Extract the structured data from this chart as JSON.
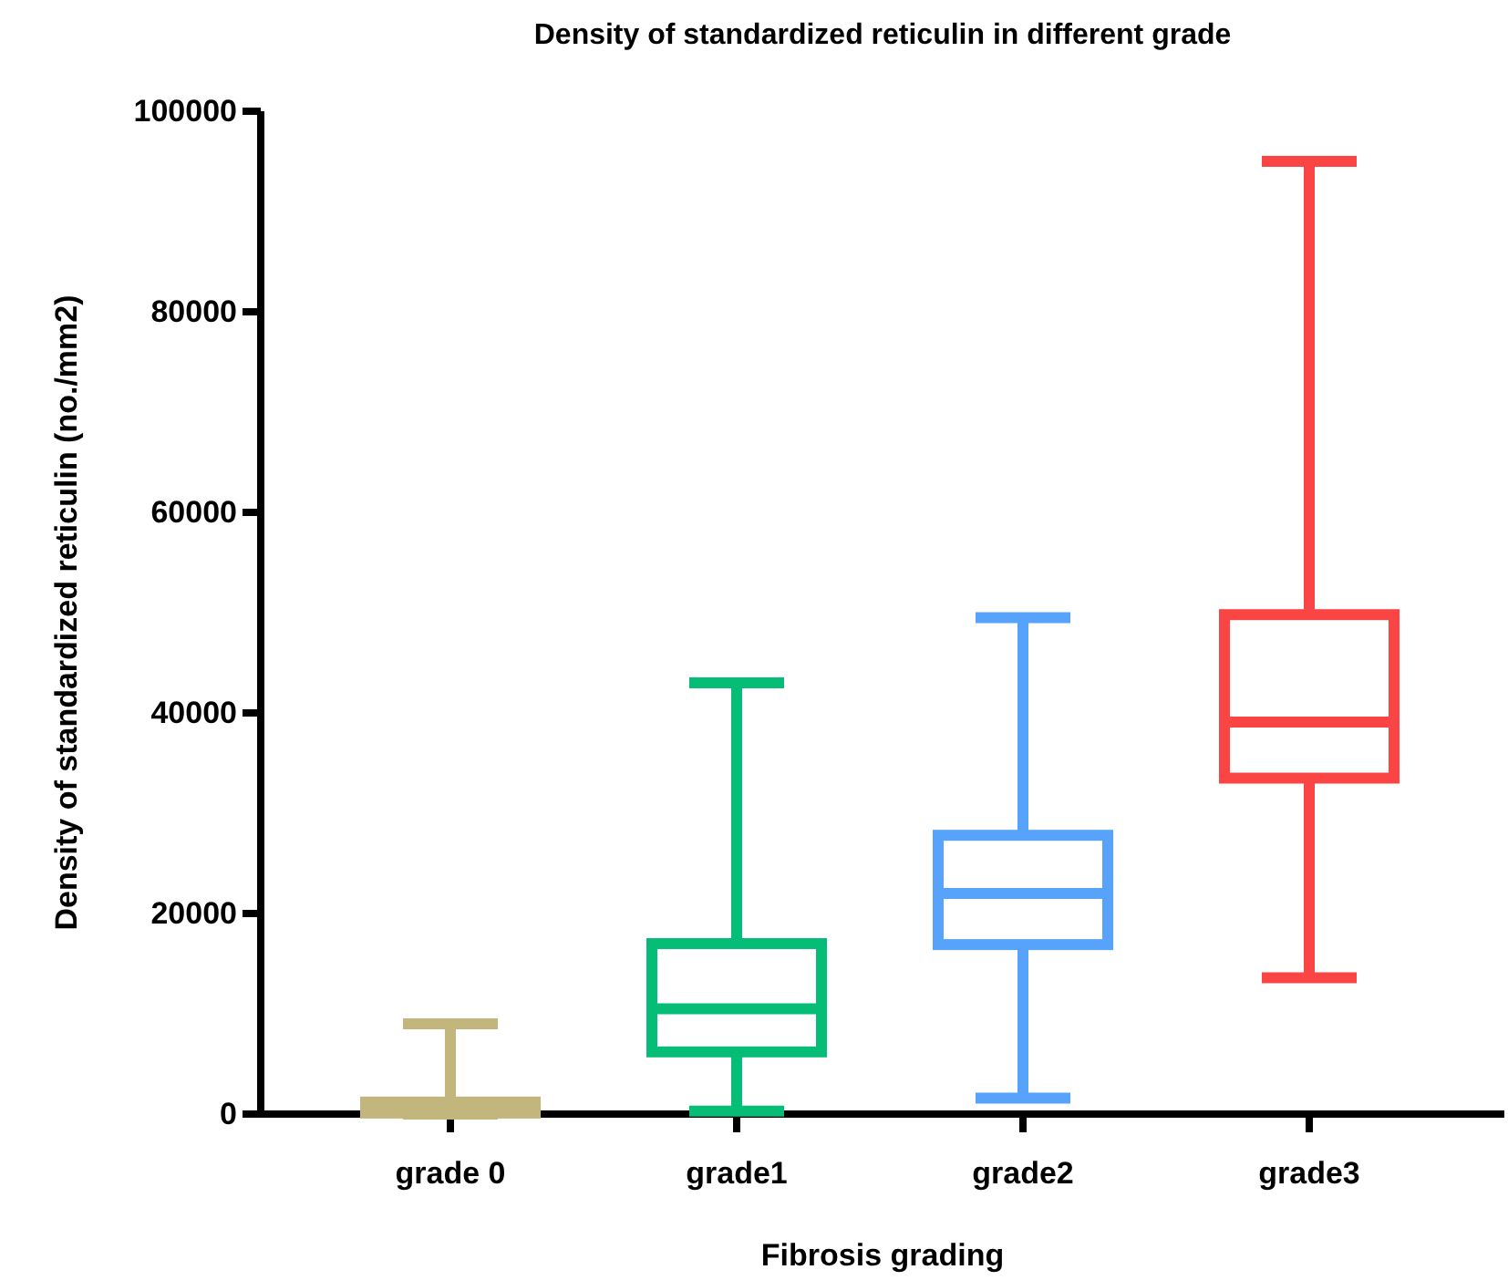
{
  "chart_data": {
    "type": "box",
    "title": "Density of standardized reticulin in different grade",
    "xlabel": "Fibrosis grading",
    "ylabel": "Density of standardized reticulin (no./mm2)",
    "categories": [
      "grade 0",
      "grade1",
      "grade2",
      "grade3"
    ],
    "colors": [
      "#c2b67c",
      "#05bd76",
      "#57a2fa",
      "#fb4545"
    ],
    "boxes": [
      {
        "low": 0,
        "q1": 100,
        "median": 500,
        "q3": 1200,
        "high": 9000
      },
      {
        "low": 300,
        "q1": 6200,
        "median": 10500,
        "q3": 17000,
        "high": 43000
      },
      {
        "low": 1600,
        "q1": 16900,
        "median": 22000,
        "q3": 27800,
        "high": 49500
      },
      {
        "low": 13600,
        "q1": 33500,
        "median": 39100,
        "q3": 49800,
        "high": 95000
      }
    ],
    "ylim": [
      0,
      100000
    ],
    "yticks": [
      0,
      20000,
      40000,
      60000,
      80000,
      100000
    ],
    "grid": false
  }
}
